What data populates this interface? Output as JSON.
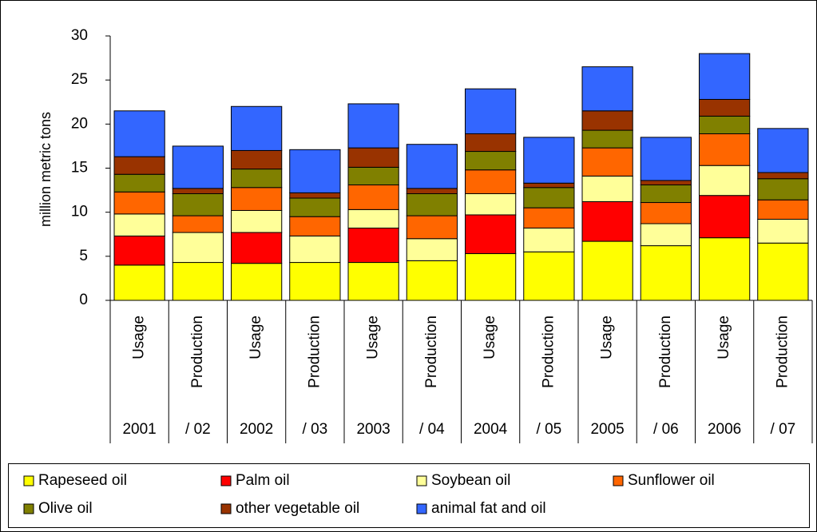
{
  "chart_data": {
    "type": "stacked-bar",
    "y_label": "million metric tons",
    "categories": [
      "Usage",
      "Production",
      "Usage",
      "Production",
      "Usage",
      "Production",
      "Usage",
      "Production",
      "Usage",
      "Production",
      "Usage",
      "Production"
    ],
    "category_groups": [
      "2001",
      "/ 02",
      "2002",
      "/ 03",
      "2003",
      "/ 04",
      "2004",
      "/ 05",
      "2005",
      "/ 06",
      "2006",
      "/ 07"
    ],
    "series": [
      {
        "name": "Rapeseed oil",
        "color": "#ffff00",
        "values": [
          4.0,
          4.3,
          4.2,
          4.3,
          4.3,
          4.5,
          5.3,
          5.5,
          6.7,
          6.2,
          7.1,
          6.5
        ]
      },
      {
        "name": "Palm oil",
        "color": "#ff0000",
        "values": [
          3.3,
          0,
          3.5,
          0,
          3.9,
          0,
          4.4,
          0,
          4.5,
          0,
          4.8,
          0
        ]
      },
      {
        "name": "Soybean oil",
        "color": "#ffff99",
        "values": [
          2.5,
          3.4,
          2.5,
          3.0,
          2.1,
          2.5,
          2.4,
          2.7,
          2.9,
          2.5,
          3.4,
          2.7
        ]
      },
      {
        "name": "Sunflower oil",
        "color": "#ff6600",
        "values": [
          2.5,
          1.9,
          2.6,
          2.2,
          2.8,
          2.6,
          2.7,
          2.3,
          3.2,
          2.4,
          3.6,
          2.2
        ]
      },
      {
        "name": "Olive oil",
        "color": "#808000",
        "values": [
          2.0,
          2.5,
          2.1,
          2.1,
          2.0,
          2.5,
          2.1,
          2.3,
          2.0,
          2.0,
          2.0,
          2.4
        ]
      },
      {
        "name": "other vegetable oil",
        "color": "#993300",
        "values": [
          2.0,
          0.6,
          2.1,
          0.6,
          2.2,
          0.6,
          2.0,
          0.5,
          2.2,
          0.5,
          1.9,
          0.7
        ]
      },
      {
        "name": "animal fat and oil",
        "color": "#3366ff",
        "values": [
          5.2,
          4.8,
          5.0,
          4.9,
          5.0,
          5.0,
          5.1,
          5.2,
          5.0,
          4.9,
          5.2,
          5.0
        ]
      }
    ],
    "ylim": [
      0,
      30
    ],
    "yticks": [
      0,
      5,
      10,
      15,
      20,
      25,
      30
    ],
    "legend": "bottom"
  }
}
